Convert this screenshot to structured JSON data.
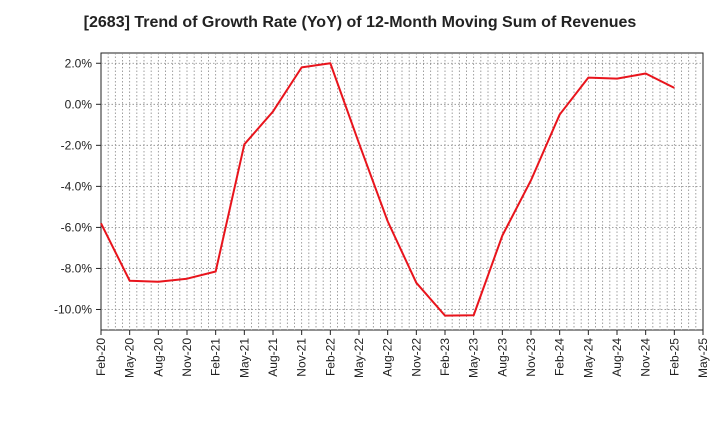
{
  "chart_data": {
    "type": "line",
    "title": "[2683]  Trend of Growth Rate (YoY) of 12-Month Moving Sum of Revenues",
    "xlabel": "",
    "ylabel": "",
    "x_tick_labels": [
      "Feb-20",
      "May-20",
      "Aug-20",
      "Nov-20",
      "Feb-21",
      "May-21",
      "Aug-21",
      "Nov-21",
      "Feb-22",
      "May-22",
      "Aug-22",
      "Nov-22",
      "Feb-23",
      "May-23",
      "Aug-23",
      "Nov-23",
      "Feb-24",
      "May-24",
      "Aug-24",
      "Nov-24",
      "Feb-25",
      "May-25"
    ],
    "y_tick_labels": [
      "2.0%",
      "0.0%",
      "-2.0%",
      "-4.0%",
      "-6.0%",
      "-8.0%",
      "-10.0%"
    ],
    "ylim": [
      -11.0,
      2.5
    ],
    "y_ticks": [
      2,
      0,
      -2,
      -4,
      -6,
      -8,
      -10
    ],
    "grid": true,
    "series": [
      {
        "color": "#e8141c",
        "x": [
          "Feb-20",
          "May-20",
          "Aug-20",
          "Nov-20",
          "Feb-21",
          "May-21",
          "Aug-21",
          "Nov-21",
          "Feb-22",
          "May-22",
          "Aug-22",
          "Nov-22",
          "Feb-23",
          "May-23",
          "Aug-23",
          "Nov-23",
          "Feb-24",
          "May-24",
          "Aug-24",
          "Nov-24",
          "Feb-25"
        ],
        "values": [
          -5.8,
          -8.6,
          -8.65,
          -8.5,
          -8.15,
          -1.95,
          -0.35,
          1.8,
          2.0,
          -1.9,
          -5.7,
          -8.7,
          -10.3,
          -10.28,
          -6.4,
          -3.7,
          -0.5,
          1.3,
          1.25,
          1.5,
          0.8
        ]
      }
    ]
  }
}
